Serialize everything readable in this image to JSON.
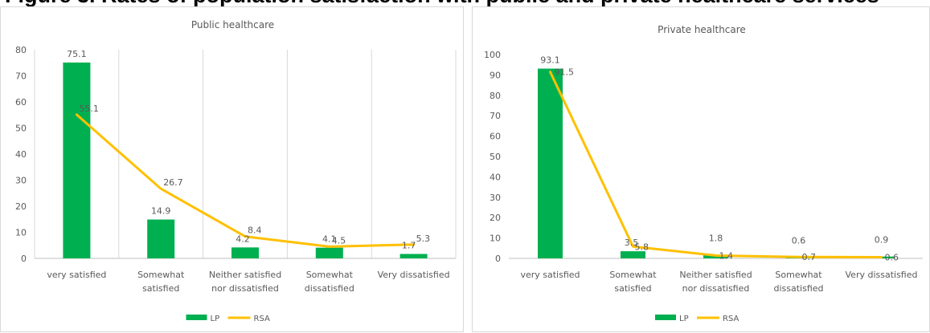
{
  "page_heading": "Figure 3. Rates of population satisfaction with public and private healthcare services",
  "legend_labels": {
    "bar": "LP",
    "line": "RSA"
  },
  "colors": {
    "bar": "#00b050",
    "line": "#ffc000",
    "grid": "#d9d9d9",
    "axis": "#bfbfbf",
    "text": "#595959"
  },
  "chart_data": [
    {
      "type": "bar",
      "title": "Public healthcare",
      "categories": [
        "very satisfied",
        "Somewhat satisfied",
        "Neither satisfied nor dissatisfied",
        "Somewhat dissatisfied",
        "Very dissatisfied"
      ],
      "category_lines": [
        [
          "very satisfied"
        ],
        [
          "Somewhat",
          "satisfied"
        ],
        [
          "Neither satisfied",
          "nor dissatisfied"
        ],
        [
          "Somewhat",
          "dissatisfied"
        ],
        [
          "Very dissatisfied"
        ]
      ],
      "series": [
        {
          "name": "LP",
          "type": "bar",
          "values": [
            75.1,
            14.9,
            4.2,
            4.1,
            1.7
          ]
        },
        {
          "name": "RSA",
          "type": "line",
          "values": [
            55.1,
            26.7,
            8.4,
            4.5,
            5.3
          ]
        }
      ],
      "ylim": [
        0,
        80
      ],
      "yticks": [
        0,
        10,
        20,
        30,
        40,
        50,
        60,
        70,
        80
      ],
      "grid": "vertical category separators",
      "legend": "bottom-center",
      "data_labels": true
    },
    {
      "type": "bar",
      "title": "Private healthcare",
      "categories": [
        "very satisfied",
        "Somewhat satisfied",
        "Neither satisfied nor dissatisfied",
        "Somewhat dissatisfied",
        "Very dissatisfied"
      ],
      "category_lines": [
        [
          "very satisfied"
        ],
        [
          "Somewhat",
          "satisfied"
        ],
        [
          "Neither satisfied",
          "nor dissatisfied"
        ],
        [
          "Somewhat",
          "dissatisfied"
        ],
        [
          "Very dissatisfied"
        ]
      ],
      "series": [
        {
          "name": "LP",
          "type": "bar",
          "values": [
            93.1,
            3.5,
            1.8,
            0.6,
            0.9
          ]
        },
        {
          "name": "RSA",
          "type": "line",
          "values": [
            91.5,
            5.8,
            1.4,
            0.7,
            0.6
          ]
        }
      ],
      "ylim": [
        0,
        100
      ],
      "yticks": [
        0,
        10,
        20,
        30,
        40,
        50,
        60,
        70,
        80,
        90,
        100
      ],
      "grid": "none",
      "legend": "bottom-center",
      "data_labels": true
    }
  ]
}
